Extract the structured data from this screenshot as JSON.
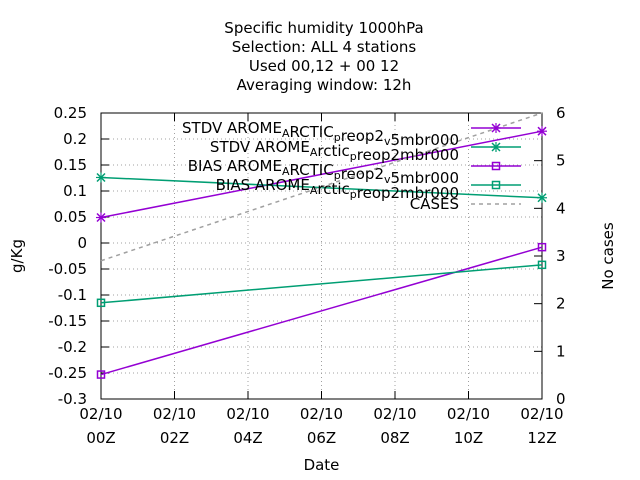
{
  "title": {
    "lines": [
      "Specific humidity 1000hPa",
      "Selection: ALL      4 stations",
      "Used  00,12  + 00 12",
      "Averaging window: 12h"
    ]
  },
  "chart_data": {
    "type": "line",
    "xlabel": "Date",
    "ylabel": "g/Kg",
    "y2label": "No cases",
    "x": [
      "02/10 00Z",
      "02/10 12Z"
    ],
    "xticks": [
      {
        "line1": "02/10",
        "line2": "00Z"
      },
      {
        "line1": "02/10",
        "line2": "02Z"
      },
      {
        "line1": "02/10",
        "line2": "04Z"
      },
      {
        "line1": "02/10",
        "line2": "06Z"
      },
      {
        "line1": "02/10",
        "line2": "08Z"
      },
      {
        "line1": "02/10",
        "line2": "10Z"
      },
      {
        "line1": "02/10",
        "line2": "12Z"
      }
    ],
    "xlim_hours": [
      0,
      12
    ],
    "ylim": [
      -0.3,
      0.25
    ],
    "yticks": [
      "-0.3",
      "-0.25",
      "-0.2",
      "-0.15",
      "-0.1",
      "-0.05",
      "0",
      "0.05",
      "0.1",
      "0.15",
      "0.2",
      "0.25"
    ],
    "y2lim": [
      0,
      6
    ],
    "y2ticks": [
      "0",
      "1",
      "2",
      "3",
      "4",
      "5",
      "6"
    ],
    "grid": true,
    "legend_position": "top-right",
    "series": [
      {
        "name": "STDV AROME_ARCTIC_preop2_v5mbr000",
        "legend": {
          "p1": "STDV AROME",
          "s1": "A",
          "p2": "RCTIC",
          "s2": "p",
          "p3": "reop2",
          "s3": "v",
          "p4": "5mbr000"
        },
        "values": [
          0.049,
          0.215
        ],
        "axis": "y1",
        "color": "#9400d3",
        "marker": "x",
        "dash": false
      },
      {
        "name": "STDV AROME_Arctic_preop2mbr000",
        "legend": {
          "p1": "STDV AROME",
          "s1": "A",
          "p2": "rctic",
          "s2": "p",
          "p3": "reop2mbr000",
          "s3": "",
          "p4": ""
        },
        "values": [
          0.126,
          0.087
        ],
        "axis": "y1",
        "color": "#009e73",
        "marker": "x",
        "dash": false
      },
      {
        "name": "BIAS AROME_ARCTIC_preop2_v5mbr000",
        "legend": {
          "p1": "BIAS AROME",
          "s1": "A",
          "p2": "RCTIC",
          "s2": "p",
          "p3": "reop2",
          "s3": "v",
          "p4": "5mbr000"
        },
        "values": [
          -0.253,
          -0.008
        ],
        "axis": "y1",
        "color": "#9400d3",
        "marker": "square",
        "dash": false
      },
      {
        "name": "BIAS AROME_Arctic_preop2mbr000",
        "legend": {
          "p1": "BIAS AROME",
          "s1": "A",
          "p2": "rctic",
          "s2": "p",
          "p3": "reop2mbr000",
          "s3": "",
          "p4": ""
        },
        "values": [
          -0.115,
          -0.042
        ],
        "axis": "y1",
        "color": "#009e73",
        "marker": "square",
        "dash": false
      },
      {
        "name": "CASES",
        "legend": {
          "p1": "CASES",
          "s1": "",
          "p2": "",
          "s2": "",
          "p3": "",
          "s3": "",
          "p4": ""
        },
        "values": [
          2.9,
          6.0
        ],
        "axis": "y2",
        "color": "#a0a0a0",
        "marker": "none",
        "dash": true
      }
    ]
  }
}
